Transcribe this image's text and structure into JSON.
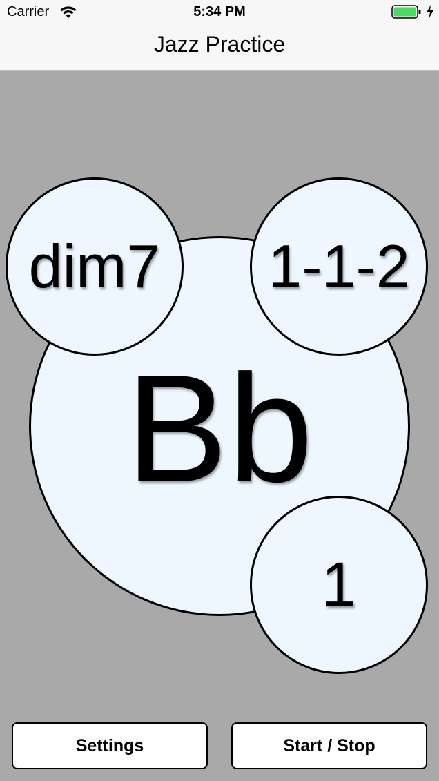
{
  "status_bar": {
    "carrier": "Carrier",
    "time": "5:34 PM",
    "icons": [
      "wifi-icon",
      "battery-icon",
      "charging-icon"
    ],
    "battery_color": "#4cd964"
  },
  "nav": {
    "title": "Jazz Practice"
  },
  "practice": {
    "root_note": "Bb",
    "chord_quality": "dim7",
    "pattern": "1-1-2",
    "count": "1"
  },
  "buttons": {
    "settings": "Settings",
    "start_stop": "Start / Stop"
  },
  "colors": {
    "background": "#a9a9a9",
    "circle_fill": "#eef6ff",
    "bar": "#f7f7f7"
  }
}
